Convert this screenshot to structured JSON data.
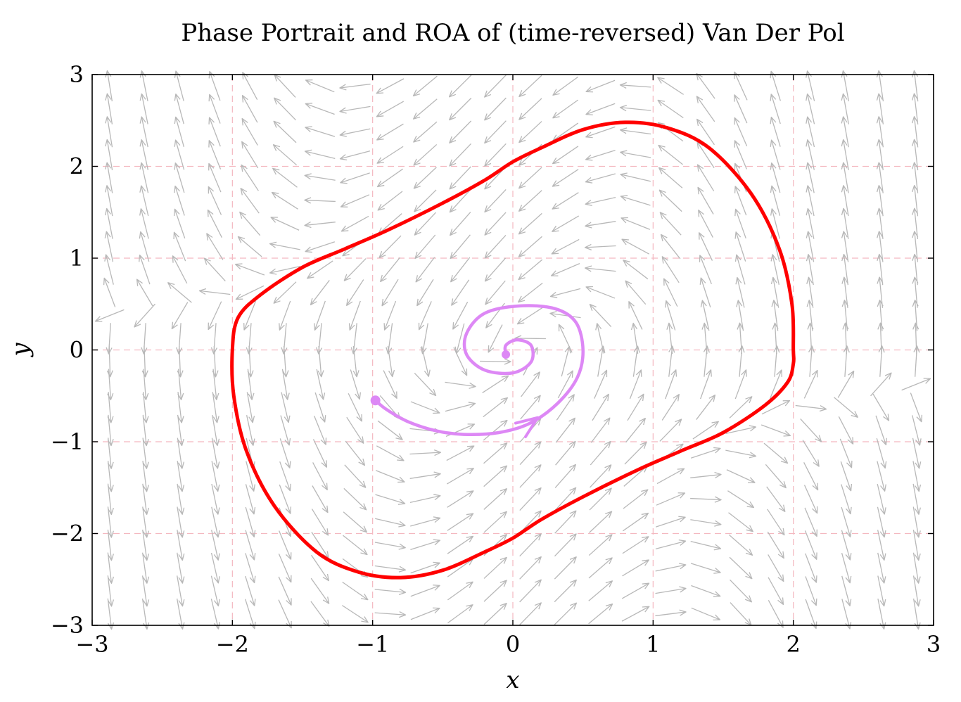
{
  "chart_data": {
    "type": "line",
    "title": "Phase Portrait and ROA of (time-reversed) Van Der Pol",
    "xlabel": "x",
    "ylabel": "y",
    "xlim": [
      -3,
      3
    ],
    "ylim": [
      -3,
      3
    ],
    "x_ticks": [
      -3,
      -2,
      -1,
      0,
      1,
      2,
      3
    ],
    "y_ticks": [
      -3,
      -2,
      -1,
      0,
      1,
      2,
      3
    ],
    "x_tick_labels": [
      "−3",
      "−2",
      "−1",
      "0",
      "1",
      "2",
      "3"
    ],
    "y_tick_labels": [
      "−3",
      "−2",
      "−1",
      "0",
      "1",
      "2",
      "3"
    ],
    "grid": true,
    "colors": {
      "roa_boundary": "#ff0000",
      "trajectory": "#dd88f5",
      "vector_field": "#b8b8b8",
      "grid": "#f4b8c0"
    },
    "vector_field": {
      "system": "dx/dt = -y, dy/dt = x - (1 - x^2) y",
      "grid_step": 0.25
    },
    "series": [
      {
        "type": "closed-curve",
        "points": [
          [
            2.0,
            0.0
          ],
          [
            2.0,
            -0.15
          ],
          [
            1.96,
            -0.35
          ],
          [
            1.8,
            -0.6
          ],
          [
            1.5,
            -0.9
          ],
          [
            1.2,
            -1.1
          ],
          [
            0.9,
            -1.3
          ],
          [
            0.5,
            -1.6
          ],
          [
            0.2,
            -1.85
          ],
          [
            0.0,
            -2.05
          ],
          [
            -0.2,
            -2.2
          ],
          [
            -0.5,
            -2.4
          ],
          [
            -0.8,
            -2.48
          ],
          [
            -1.1,
            -2.42
          ],
          [
            -1.4,
            -2.2
          ],
          [
            -1.7,
            -1.7
          ],
          [
            -1.9,
            -1.1
          ],
          [
            -1.99,
            -0.5
          ],
          [
            -2.0,
            0.0
          ],
          [
            -1.96,
            0.35
          ],
          [
            -1.8,
            0.6
          ],
          [
            -1.5,
            0.9
          ],
          [
            -1.2,
            1.1
          ],
          [
            -0.9,
            1.3
          ],
          [
            -0.5,
            1.6
          ],
          [
            -0.2,
            1.85
          ],
          [
            0.0,
            2.05
          ],
          [
            0.2,
            2.2
          ],
          [
            0.5,
            2.4
          ],
          [
            0.8,
            2.48
          ],
          [
            1.1,
            2.42
          ],
          [
            1.4,
            2.2
          ],
          [
            1.7,
            1.7
          ],
          [
            1.9,
            1.1
          ],
          [
            1.99,
            0.5
          ]
        ]
      },
      {
        "type": "trajectory",
        "points": [
          [
            -0.98,
            -0.55
          ],
          [
            -0.9,
            -0.65
          ],
          [
            -0.75,
            -0.78
          ],
          [
            -0.55,
            -0.88
          ],
          [
            -0.35,
            -0.92
          ],
          [
            -0.1,
            -0.9
          ],
          [
            0.12,
            -0.8
          ],
          [
            0.32,
            -0.58
          ],
          [
            0.46,
            -0.3
          ],
          [
            0.5,
            0.0
          ],
          [
            0.45,
            0.3
          ],
          [
            0.3,
            0.45
          ],
          [
            0.05,
            0.48
          ],
          [
            -0.2,
            0.4
          ],
          [
            -0.33,
            0.18
          ],
          [
            -0.33,
            -0.05
          ],
          [
            -0.2,
            -0.22
          ],
          [
            0.0,
            -0.25
          ],
          [
            0.13,
            -0.13
          ],
          [
            0.13,
            0.05
          ],
          [
            0.03,
            0.11
          ],
          [
            -0.05,
            0.05
          ],
          [
            -0.05,
            -0.05
          ]
        ],
        "start": [
          -0.98,
          -0.55
        ],
        "end": [
          -0.05,
          -0.05
        ]
      }
    ]
  }
}
